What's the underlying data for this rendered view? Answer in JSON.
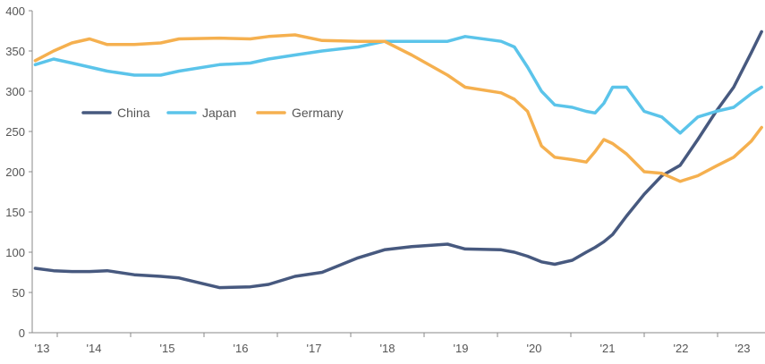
{
  "chart_data": {
    "type": "line",
    "title": "",
    "xlabel": "",
    "ylabel": "",
    "ylim": [
      0,
      400
    ],
    "yticks": [
      0,
      50,
      100,
      150,
      200,
      250,
      300,
      350,
      400
    ],
    "xlim": [
      2013.6,
      2023.65
    ],
    "xtick_labels": [
      "'13",
      "'14",
      "'15",
      "'16",
      "'17",
      "'18",
      "'19",
      "'20",
      "'21",
      "'22",
      "'23"
    ],
    "grid": false,
    "legend_position": "top-left",
    "x": [
      2013.7,
      2013.95,
      2014.2,
      2014.44,
      2014.68,
      2015.05,
      2015.41,
      2015.66,
      2016.21,
      2016.63,
      2016.88,
      2017.24,
      2017.61,
      2018.1,
      2018.46,
      2018.83,
      2019.32,
      2019.56,
      2020.05,
      2020.23,
      2020.41,
      2020.6,
      2020.78,
      2021.02,
      2021.21,
      2021.33,
      2021.45,
      2021.57,
      2021.76,
      2022.0,
      2022.24,
      2022.49,
      2022.73,
      2022.98,
      2023.22,
      2023.46,
      2023.6
    ],
    "series": [
      {
        "name": "China",
        "color": "#47597f",
        "values": [
          80,
          77,
          76,
          76,
          77,
          72,
          70,
          68,
          56,
          57,
          60,
          70,
          75,
          93,
          103,
          107,
          110,
          104,
          103,
          100,
          95,
          88,
          85,
          90,
          100,
          106,
          113,
          122,
          145,
          172,
          195,
          208,
          240,
          275,
          305,
          348,
          374
        ]
      },
      {
        "name": "Japan",
        "color": "#5bc4ea",
        "values": [
          333,
          340,
          335,
          330,
          325,
          320,
          320,
          325,
          333,
          335,
          340,
          345,
          350,
          355,
          362,
          362,
          362,
          368,
          362,
          355,
          330,
          300,
          283,
          280,
          275,
          273,
          285,
          305,
          305,
          275,
          268,
          248,
          268,
          275,
          280,
          297,
          305
        ]
      },
      {
        "name": "Germany",
        "color": "#f5b04f",
        "values": [
          338,
          350,
          360,
          365,
          358,
          358,
          360,
          365,
          366,
          365,
          368,
          370,
          363,
          362,
          362,
          345,
          320,
          305,
          298,
          290,
          275,
          232,
          218,
          215,
          212,
          225,
          240,
          235,
          222,
          200,
          198,
          188,
          195,
          207,
          218,
          238,
          255
        ]
      }
    ]
  }
}
